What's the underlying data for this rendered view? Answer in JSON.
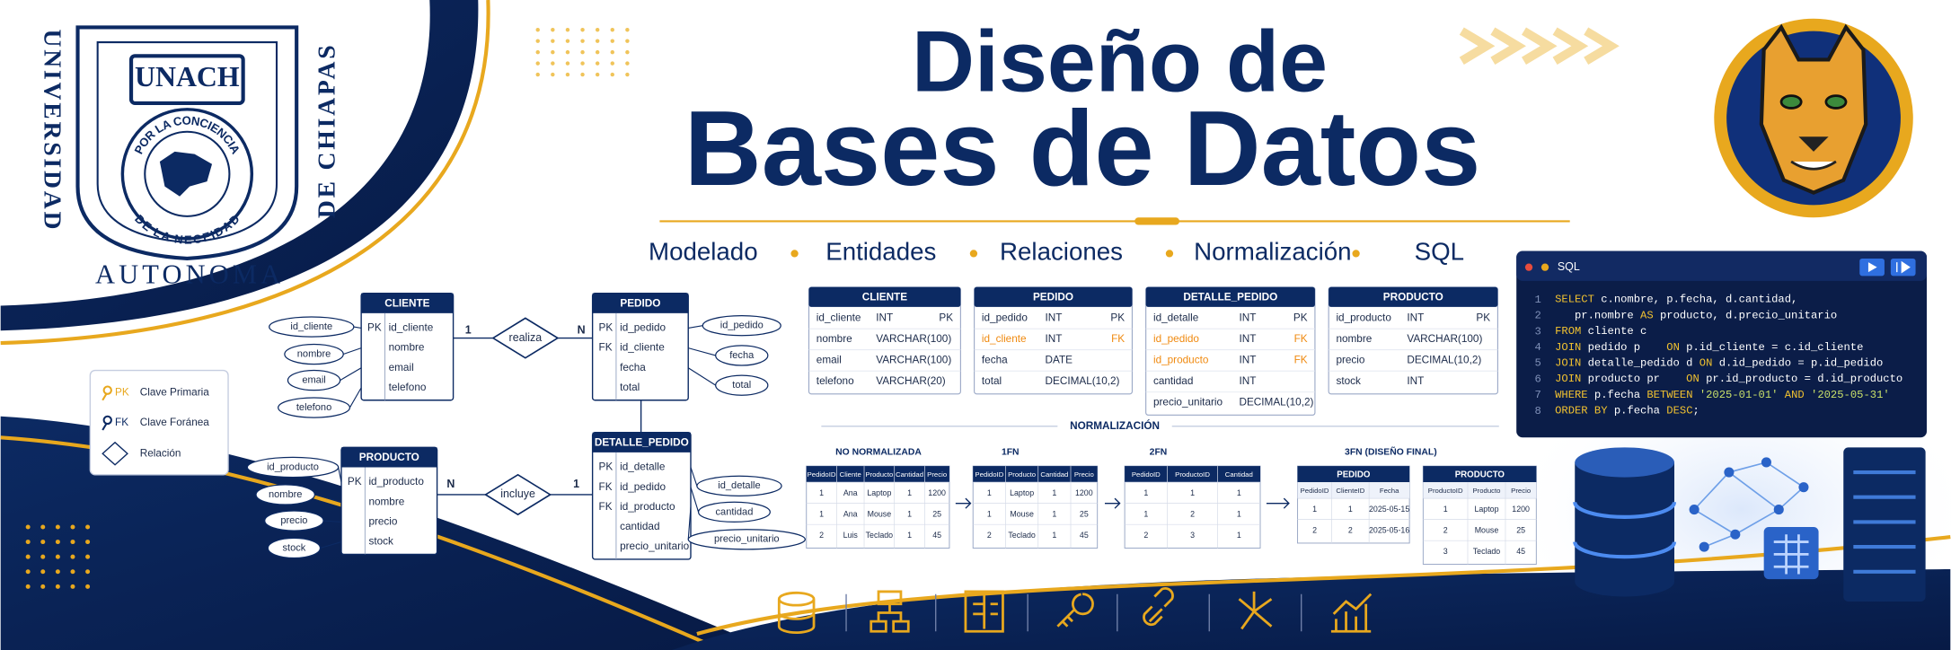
{
  "university": {
    "arc_left": "UNIVERSIDAD",
    "arc_right": "DE CHIAPAS",
    "bottom": "AUTONOMA",
    "shield": "UNACH",
    "motto_top": "POR LA CONCIENCIA",
    "motto_bottom": "DE LA NECEIDAD"
  },
  "header": {
    "title_line1": "Diseño de",
    "title_line2": "Bases de Datos",
    "topics": [
      "Modelado",
      "Entidades",
      "Relaciones",
      "Normalización",
      "SQL"
    ]
  },
  "er": {
    "entities": [
      {
        "name": "CLIENTE",
        "rows": [
          {
            "key": "PK",
            "field": "id_cliente"
          },
          {
            "field": "nombre"
          },
          {
            "field": "email"
          },
          {
            "field": "telefono"
          }
        ],
        "attributes": [
          "id_cliente",
          "nombre",
          "email",
          "telefono"
        ]
      },
      {
        "name": "PEDIDO",
        "rows": [
          {
            "key": "PK",
            "field": "id_pedido"
          },
          {
            "key": "FK",
            "field": "id_cliente"
          },
          {
            "field": "fecha"
          },
          {
            "field": "total"
          }
        ],
        "attributes": [
          "id_pedido",
          "fecha",
          "total"
        ]
      },
      {
        "name": "PRODUCTO",
        "rows": [
          {
            "key": "PK",
            "field": "id_producto"
          },
          {
            "field": "nombre"
          },
          {
            "field": "precio"
          },
          {
            "field": "stock"
          }
        ],
        "attributes": [
          "id_producto",
          "nombre",
          "precio",
          "stock"
        ]
      },
      {
        "name": "DETALLE_PEDIDO",
        "rows": [
          {
            "key": "PK",
            "field": "id_detalle"
          },
          {
            "key": "FK",
            "field": "id_pedido"
          },
          {
            "key": "FK",
            "field": "id_producto"
          },
          {
            "field": "cantidad"
          },
          {
            "field": "precio_unitario"
          }
        ],
        "attributes": [
          "id_detalle",
          "cantidad",
          "precio_unitario"
        ]
      }
    ],
    "relations": [
      {
        "name": "realiza",
        "left": 1,
        "right": "N"
      },
      {
        "name": "incluye",
        "left": "N",
        "right": 1
      }
    ]
  },
  "legend": {
    "keys": [
      {
        "key": "PK",
        "label": "Clave Primaria"
      },
      {
        "key": "FK",
        "label": "Clave Foránea"
      }
    ],
    "relation": "Relación"
  },
  "schema": [
    {
      "name": "CLIENTE",
      "rows": [
        [
          "id_cliente",
          "INT",
          "PK"
        ],
        [
          "nombre",
          "VARCHAR(100)"
        ],
        [
          "email",
          "VARCHAR(100)"
        ],
        [
          "telefono",
          "VARCHAR(20)"
        ]
      ]
    },
    {
      "name": "PEDIDO",
      "rows": [
        [
          "id_pedido",
          "INT",
          "PK"
        ],
        [
          "id_cliente",
          "INT",
          "FK"
        ],
        [
          "fecha",
          "DATE"
        ],
        [
          "total",
          "DECIMAL(10,2)"
        ]
      ]
    },
    {
      "name": "DETALLE_PEDIDO",
      "rows": [
        [
          "id_detalle",
          "INT",
          "PK"
        ],
        [
          "id_pedido",
          "INT",
          "FK"
        ],
        [
          "id_producto",
          "INT",
          "FK"
        ],
        [
          "cantidad",
          "INT"
        ],
        [
          "precio_unitario",
          "DECIMAL(10,2)"
        ]
      ]
    },
    {
      "name": "PRODUCTO",
      "rows": [
        [
          "id_producto",
          "INT",
          "PK"
        ],
        [
          "nombre",
          "VARCHAR(100)"
        ],
        [
          "precio",
          "DECIMAL(10,2)"
        ],
        [
          "stock",
          "INT"
        ]
      ]
    }
  ],
  "normalization": {
    "title": "NORMALIZACIÓN",
    "stages": [
      {
        "label": "NO NORMALIZADA",
        "tables": [
          {
            "columns": [
              "PedidoID",
              "Cliente",
              "Producto",
              "Cantidad",
              "Precio"
            ],
            "rows": [
              [
                1,
                "Ana",
                "Laptop",
                1,
                1200
              ],
              [
                1,
                "Ana",
                "Mouse",
                1,
                25
              ],
              [
                2,
                "Luis",
                "Teclado",
                1,
                45
              ]
            ]
          }
        ]
      },
      {
        "label": "1FN",
        "tables": [
          {
            "columns": [
              "PedidoID",
              "Producto",
              "Cantidad",
              "Precio"
            ],
            "rows": [
              [
                1,
                "Laptop",
                1,
                1200
              ],
              [
                1,
                "Mouse",
                1,
                25
              ],
              [
                2,
                "Teclado",
                1,
                45
              ]
            ]
          }
        ]
      },
      {
        "label": "2FN",
        "tables": [
          {
            "columns": [
              "PedidoID",
              "ProductoID",
              "Cantidad"
            ],
            "rows": [
              [
                1,
                1,
                1
              ],
              [
                1,
                2,
                1
              ],
              [
                2,
                3,
                1
              ]
            ]
          }
        ]
      },
      {
        "label": "3FN (DISEÑO FINAL)",
        "tables": [
          {
            "name": "PEDIDO",
            "columns": [
              "PedidoID",
              "ClienteID",
              "Fecha"
            ],
            "rows": [
              [
                1,
                1,
                "2025-05-15"
              ],
              [
                2,
                2,
                "2025-05-16"
              ]
            ]
          },
          {
            "name": "PRODUCTO",
            "columns": [
              "ProductoID",
              "Producto",
              "Precio"
            ],
            "rows": [
              [
                1,
                "Laptop",
                1200
              ],
              [
                2,
                "Mouse",
                25
              ],
              [
                3,
                "Teclado",
                45
              ]
            ]
          }
        ]
      }
    ]
  },
  "sql": {
    "title": "SQL",
    "line_numbers": [
      1,
      2,
      3,
      4,
      5,
      6,
      7,
      8
    ],
    "lines": [
      "SELECT c.nombre, p.fecha, d.cantidad,",
      "   pr.nombre AS producto, d.precio_unitario",
      "FROM cliente c",
      "JOIN pedido p    ON p.id_cliente = c.id_cliente",
      "JOIN detalle_pedido d ON d.id_pedido = p.id_pedido",
      "JOIN producto pr    ON pr.id_producto = d.id_producto",
      "WHERE p.fecha BETWEEN '2025-01-01' AND '2025-05-31'",
      "ORDER BY p.fecha DESC;"
    ]
  }
}
